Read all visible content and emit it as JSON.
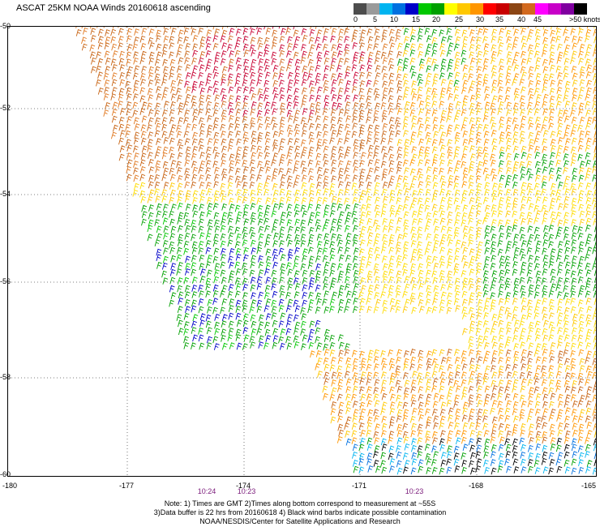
{
  "title": "ASCAT 25KM NOAA Winds 20160618 ascending",
  "colorbar": {
    "colors": [
      "#4d4d4d",
      "#9a9a9a",
      "#00b4f0",
      "#0070e0",
      "#0000c8",
      "#00c800",
      "#00a000",
      "#ffff00",
      "#ffc800",
      "#ff9600",
      "#ff0000",
      "#c80000",
      "#8b4513",
      "#d2691e",
      "#ff00ff",
      "#c800c8",
      "#8000a0",
      "#000000"
    ],
    "labels": [
      "0",
      "5",
      "10",
      "15",
      "20",
      "25",
      "30",
      "35",
      "40",
      "45",
      ">50 knots"
    ]
  },
  "lat_labels": [
    "-50",
    "-52",
    "-54",
    "-56",
    "-58",
    "-60"
  ],
  "lon_labels": [
    "-180",
    "-177",
    "-174",
    "-171",
    "-168",
    "-165"
  ],
  "time_labels": [
    "10:24",
    "10:23",
    "10:23"
  ],
  "notes": [
    "Note: 1) Times are GMT 2)Times along bottom correspond to measurement at ~55S",
    "3)Data buffer is 22 hrs from 20160618 4) Black wind barbs indicate possible contamination",
    "NOAA/NESDIS/Center for Satellite Applications and Research"
  ]
}
